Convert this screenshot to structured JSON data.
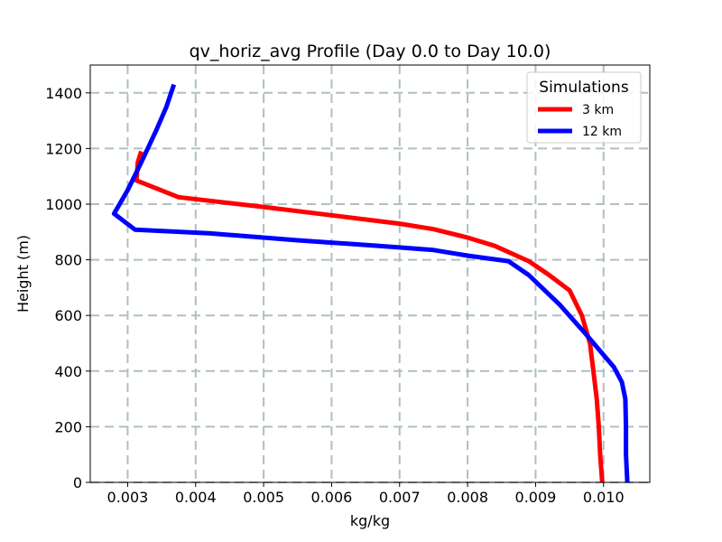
{
  "chart_data": {
    "type": "line",
    "title": "qv_horiz_avg Profile (Day 0.0 to Day 10.0)",
    "xlabel": "kg/kg",
    "ylabel": "Height (m)",
    "xlim": [
      0.00245,
      0.01068
    ],
    "ylim": [
      0,
      1500
    ],
    "x_ticks": [
      0.003,
      0.004,
      0.005,
      0.006,
      0.007,
      0.008,
      0.009,
      0.01
    ],
    "x_tick_labels": [
      "0.003",
      "0.004",
      "0.005",
      "0.006",
      "0.007",
      "0.008",
      "0.009",
      "0.010"
    ],
    "y_ticks": [
      0,
      200,
      400,
      600,
      800,
      1000,
      1200,
      1400
    ],
    "y_tick_labels": [
      "0",
      "200",
      "400",
      "600",
      "800",
      "1000",
      "1200",
      "1400"
    ],
    "grid": true,
    "legend": {
      "title": "Simulations",
      "position": "top-right"
    },
    "series": [
      {
        "name": "3 km",
        "color": "#ff0000",
        "points": [
          [
            0.00998,
            0
          ],
          [
            0.00995,
            100
          ],
          [
            0.00993,
            200
          ],
          [
            0.0099,
            300
          ],
          [
            0.00985,
            400
          ],
          [
            0.0098,
            500
          ],
          [
            0.00968,
            600
          ],
          [
            0.0095,
            690
          ],
          [
            0.0092,
            745
          ],
          [
            0.0089,
            795
          ],
          [
            0.0084,
            850
          ],
          [
            0.008,
            880
          ],
          [
            0.0075,
            910
          ],
          [
            0.007,
            930
          ],
          [
            0.006,
            960
          ],
          [
            0.005,
            990
          ],
          [
            0.00375,
            1025
          ],
          [
            0.00313,
            1085
          ],
          [
            0.00315,
            1150
          ],
          [
            0.0032,
            1190
          ]
        ]
      },
      {
        "name": "12 km",
        "color": "#0000ff",
        "points": [
          [
            0.01035,
            0
          ],
          [
            0.01033,
            100
          ],
          [
            0.01033,
            200
          ],
          [
            0.01032,
            300
          ],
          [
            0.01027,
            360
          ],
          [
            0.01015,
            415
          ],
          [
            0.00975,
            530
          ],
          [
            0.00935,
            640
          ],
          [
            0.0089,
            745
          ],
          [
            0.0086,
            795
          ],
          [
            0.008,
            815
          ],
          [
            0.0075,
            835
          ],
          [
            0.0067,
            850
          ],
          [
            0.0055,
            870
          ],
          [
            0.0042,
            895
          ],
          [
            0.00311,
            908
          ],
          [
            0.0028,
            966
          ],
          [
            0.003,
            1050
          ],
          [
            0.0032,
            1150
          ],
          [
            0.00343,
            1270
          ],
          [
            0.00357,
            1350
          ],
          [
            0.00368,
            1430
          ]
        ]
      }
    ]
  }
}
